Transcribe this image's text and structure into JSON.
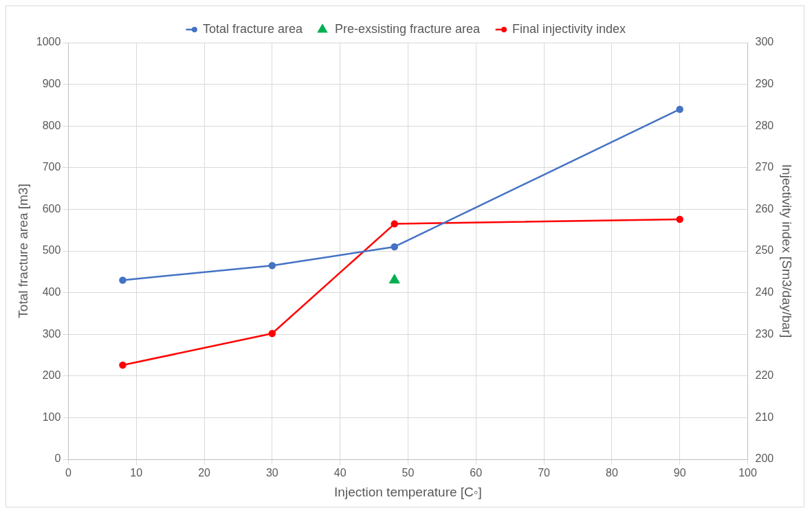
{
  "chart_data": {
    "type": "line",
    "xlabel": "Injection temperature [C◦]",
    "ylabel": "Total fracture area [m3]",
    "y2label": "Injectivity index [Sm3/day/bar]",
    "xlim": [
      0,
      100
    ],
    "xticks": [
      0,
      10,
      20,
      30,
      40,
      50,
      60,
      70,
      80,
      90,
      100
    ],
    "ylim": [
      0,
      1000
    ],
    "yticks": [
      0,
      100,
      200,
      300,
      400,
      500,
      600,
      700,
      800,
      900,
      1000
    ],
    "y2lim": [
      200,
      300
    ],
    "y2ticks": [
      200,
      210,
      220,
      230,
      240,
      250,
      260,
      270,
      280,
      290,
      300
    ],
    "grid": true,
    "legend": "top",
    "series": [
      {
        "name": "Total fracture area",
        "type": "line",
        "marker": "circle",
        "color": "#4472c4",
        "x": [
          8,
          30,
          48,
          90
        ],
        "values": [
          430,
          465,
          510,
          840
        ]
      },
      {
        "name": "Pre-exsisting fracture area",
        "type": "scatter",
        "marker": "triangle",
        "color": "#00b050",
        "x": [
          48
        ],
        "values": [
          430
        ]
      },
      {
        "name": "Final injectivity index",
        "type": "line",
        "marker": "circle",
        "color": "#ff0000",
        "axis": "y2",
        "x": [
          8,
          30,
          48,
          90
        ],
        "values": [
          222.6,
          230.2,
          256.5,
          257.6
        ]
      }
    ]
  }
}
